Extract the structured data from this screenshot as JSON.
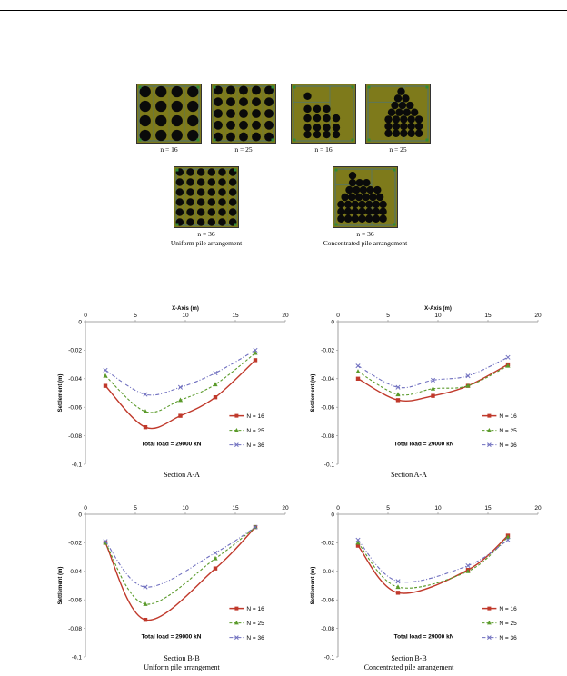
{
  "pile_figure": {
    "panels": [
      {
        "id": "u16",
        "caption": "n = 16",
        "kind": "uniform",
        "grid": 4
      },
      {
        "id": "u25",
        "caption": "n = 25",
        "kind": "uniform",
        "grid": 5
      },
      {
        "id": "c16",
        "caption": "n = 16",
        "kind": "concentrated",
        "count": 16
      },
      {
        "id": "c25",
        "caption": "n = 25",
        "kind": "concentrated",
        "count": 25
      },
      {
        "id": "u36",
        "caption": "n = 36",
        "kind": "uniform",
        "grid": 6
      },
      {
        "id": "c36",
        "caption": "n = 36",
        "kind": "concentrated",
        "count": 36
      }
    ],
    "uniform_caption": "Uniform pile arrangement",
    "concentrated_caption": "Concentrated pile arrangement",
    "colors": {
      "raft": "#7e7a1b",
      "pile": "#0a0a0a",
      "grid_line": "#2b6fb5",
      "node": "#2e8b3a"
    }
  },
  "legend_labels": [
    "N = 16",
    "N = 25",
    "N = 36"
  ],
  "total_load_label": "Total load = 29000 kN",
  "x_axis_label": "X-Axis (m)",
  "y_axis_label": "Settlement (m)",
  "series_colors": {
    "N16": "#c0392b",
    "N25": "#5a9a2a",
    "N36": "#6f6fbf"
  },
  "captions": {
    "chart1": "Section A-A",
    "chart2": "Section A-A",
    "chart3": "Section B-B",
    "chart4": "Section B-B",
    "col_left": "Uniform pile arrangement",
    "col_right": "Concentrated pile arrangement"
  },
  "chart_data": [
    {
      "id": "chart1",
      "type": "line",
      "xlim": [
        0,
        20
      ],
      "ylim": [
        -0.1,
        0
      ],
      "xticks": [
        0,
        5,
        10,
        15,
        20
      ],
      "yticks": [
        0,
        -0.02,
        -0.04,
        -0.06,
        -0.08,
        -0.1
      ],
      "show_xlabel": true,
      "series": [
        {
          "name": "N = 16",
          "x": [
            2,
            6,
            9.5,
            13,
            17
          ],
          "y": [
            -0.045,
            -0.074,
            -0.066,
            -0.053,
            -0.027
          ]
        },
        {
          "name": "N = 25",
          "x": [
            2,
            6,
            9.5,
            13,
            17
          ],
          "y": [
            -0.038,
            -0.063,
            -0.055,
            -0.044,
            -0.022
          ]
        },
        {
          "name": "N = 36",
          "x": [
            2,
            6,
            9.5,
            13,
            17
          ],
          "y": [
            -0.034,
            -0.051,
            -0.046,
            -0.036,
            -0.02
          ]
        }
      ]
    },
    {
      "id": "chart2",
      "type": "line",
      "xlim": [
        0,
        20
      ],
      "ylim": [
        -0.1,
        0
      ],
      "xticks": [
        0,
        5,
        10,
        15,
        20
      ],
      "yticks": [
        0,
        -0.02,
        -0.04,
        -0.06,
        -0.08,
        -0.1
      ],
      "show_xlabel": true,
      "series": [
        {
          "name": "N = 16",
          "x": [
            2,
            6,
            9.5,
            13,
            17
          ],
          "y": [
            -0.04,
            -0.055,
            -0.052,
            -0.045,
            -0.03
          ]
        },
        {
          "name": "N = 25",
          "x": [
            2,
            6,
            9.5,
            13,
            17
          ],
          "y": [
            -0.035,
            -0.051,
            -0.047,
            -0.045,
            -0.031
          ]
        },
        {
          "name": "N = 36",
          "x": [
            2,
            6,
            9.5,
            13,
            17
          ],
          "y": [
            -0.031,
            -0.046,
            -0.041,
            -0.038,
            -0.025
          ]
        }
      ]
    },
    {
      "id": "chart3",
      "type": "line",
      "xlim": [
        0,
        20
      ],
      "ylim": [
        -0.1,
        0
      ],
      "xticks": [
        0,
        5,
        10,
        15,
        20
      ],
      "yticks": [
        0,
        -0.02,
        -0.04,
        -0.06,
        -0.08,
        -0.1
      ],
      "show_xlabel": false,
      "series": [
        {
          "name": "N = 16",
          "x": [
            2,
            6,
            13,
            17
          ],
          "y": [
            -0.02,
            -0.074,
            -0.038,
            -0.009
          ]
        },
        {
          "name": "N = 25",
          "x": [
            2,
            6,
            13,
            17
          ],
          "y": [
            -0.02,
            -0.063,
            -0.031,
            -0.009
          ]
        },
        {
          "name": "N = 36",
          "x": [
            2,
            6,
            13,
            17
          ],
          "y": [
            -0.019,
            -0.051,
            -0.027,
            -0.009
          ]
        }
      ]
    },
    {
      "id": "chart4",
      "type": "line",
      "xlim": [
        0,
        20
      ],
      "ylim": [
        -0.1,
        0
      ],
      "xticks": [
        0,
        5,
        10,
        15,
        20
      ],
      "yticks": [
        0,
        -0.02,
        -0.04,
        -0.06,
        -0.08,
        -0.1
      ],
      "show_xlabel": false,
      "series": [
        {
          "name": "N = 16",
          "x": [
            2,
            6,
            13,
            17
          ],
          "y": [
            -0.022,
            -0.055,
            -0.039,
            -0.015
          ]
        },
        {
          "name": "N = 25",
          "x": [
            2,
            6,
            13,
            17
          ],
          "y": [
            -0.02,
            -0.051,
            -0.04,
            -0.016
          ]
        },
        {
          "name": "N = 36",
          "x": [
            2,
            6,
            13,
            17
          ],
          "y": [
            -0.018,
            -0.047,
            -0.036,
            -0.018
          ]
        }
      ]
    }
  ]
}
